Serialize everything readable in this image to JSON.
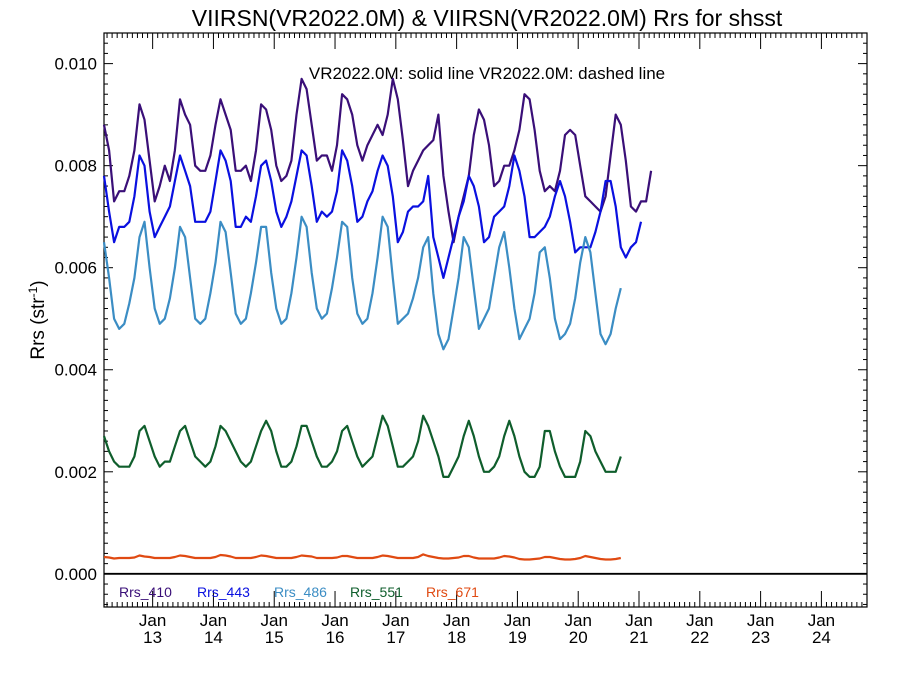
{
  "chart_data": {
    "type": "line",
    "title": "VIIRSN(VR2022.0M) & VIIRSN(VR2022.0M)  Rrs for shsst",
    "annotation": "VR2022.0M: solid line   VR2022.0M: dashed line",
    "ylabel_main": "Rrs (str",
    "ylabel_sup": "-1",
    "ylabel_close": ")",
    "ylim": [
      -0.00065,
      0.0106
    ],
    "y_ticks": [
      0.0,
      0.002,
      0.004,
      0.006,
      0.008,
      0.01
    ],
    "y_tick_labels": [
      "0.000",
      "0.002",
      "0.004",
      "0.006",
      "0.008",
      "0.010"
    ],
    "x_range": [
      2012.2,
      2024.75
    ],
    "x_year_ticks": [
      {
        "month": "Jan",
        "year": "13",
        "x": 2013.0
      },
      {
        "month": "Jan",
        "year": "14",
        "x": 2014.0
      },
      {
        "month": "Jan",
        "year": "15",
        "x": 2015.0
      },
      {
        "month": "Jan",
        "year": "16",
        "x": 2016.0
      },
      {
        "month": "Jan",
        "year": "17",
        "x": 2017.0
      },
      {
        "month": "Jan",
        "year": "18",
        "x": 2018.0
      },
      {
        "month": "Jan",
        "year": "19",
        "x": 2019.0
      },
      {
        "month": "Jan",
        "year": "20",
        "x": 2020.0
      },
      {
        "month": "Jan",
        "year": "21",
        "x": 2021.0
      },
      {
        "month": "Jan",
        "year": "22",
        "x": 2022.0
      },
      {
        "month": "Jan",
        "year": "23",
        "x": 2023.0
      },
      {
        "month": "Jan",
        "year": "24",
        "x": 2024.0
      }
    ],
    "x_start": 2012.2,
    "x_step": 0.08333,
    "series": [
      {
        "name": "Rrs_410",
        "color": "#3a0f78",
        "values": [
          0.0088,
          0.0083,
          0.0073,
          0.0075,
          0.0075,
          0.0078,
          0.0083,
          0.0092,
          0.0089,
          0.0081,
          0.0073,
          0.0076,
          0.008,
          0.0077,
          0.0083,
          0.0093,
          0.009,
          0.0088,
          0.008,
          0.0079,
          0.0079,
          0.0082,
          0.0088,
          0.0093,
          0.009,
          0.0087,
          0.0079,
          0.0079,
          0.008,
          0.0077,
          0.0083,
          0.0092,
          0.0091,
          0.0087,
          0.008,
          0.0077,
          0.0078,
          0.0081,
          0.009,
          0.0097,
          0.0095,
          0.0088,
          0.0081,
          0.0082,
          0.0082,
          0.0079,
          0.0084,
          0.0094,
          0.0093,
          0.009,
          0.0084,
          0.0081,
          0.0084,
          0.0086,
          0.0088,
          0.0086,
          0.009,
          0.0097,
          0.0093,
          0.0085,
          0.0076,
          0.0079,
          0.0081,
          0.0083,
          0.0084,
          0.0085,
          0.009,
          0.0078,
          0.0071,
          0.0065,
          0.007,
          0.0074,
          0.0078,
          0.0086,
          0.0091,
          0.0089,
          0.0084,
          0.0076,
          0.0077,
          0.008,
          0.008,
          0.0083,
          0.0087,
          0.0094,
          0.0093,
          0.0087,
          0.0079,
          0.0075,
          0.0076,
          0.0075,
          0.0079,
          0.0086,
          0.0087,
          0.0086,
          0.008,
          0.0074,
          0.0073,
          0.0072,
          0.0071,
          0.0074,
          0.0082,
          0.009,
          0.0088,
          0.0081,
          0.0072,
          0.0071,
          0.0073,
          0.0073,
          0.0079
        ]
      },
      {
        "name": "Rrs_443",
        "color": "#0a10e0",
        "values": [
          0.0078,
          0.0071,
          0.0065,
          0.0068,
          0.0068,
          0.0069,
          0.0074,
          0.0082,
          0.008,
          0.0071,
          0.0066,
          0.0068,
          0.007,
          0.0072,
          0.0077,
          0.0082,
          0.0079,
          0.0076,
          0.0069,
          0.0069,
          0.0069,
          0.0071,
          0.0077,
          0.0083,
          0.0081,
          0.0077,
          0.0068,
          0.0068,
          0.007,
          0.0069,
          0.0074,
          0.008,
          0.0081,
          0.0077,
          0.0071,
          0.0068,
          0.007,
          0.0073,
          0.0078,
          0.0083,
          0.0082,
          0.0076,
          0.0069,
          0.0071,
          0.007,
          0.0071,
          0.0075,
          0.0083,
          0.0081,
          0.0076,
          0.0069,
          0.007,
          0.0073,
          0.0075,
          0.0079,
          0.0082,
          0.008,
          0.0074,
          0.0065,
          0.0067,
          0.0071,
          0.0072,
          0.0072,
          0.0073,
          0.0078,
          0.0066,
          0.0062,
          0.0058,
          0.0062,
          0.0066,
          0.007,
          0.0073,
          0.0078,
          0.0076,
          0.0072,
          0.0065,
          0.0066,
          0.007,
          0.0071,
          0.0072,
          0.0076,
          0.0082,
          0.0079,
          0.0074,
          0.0066,
          0.0066,
          0.0067,
          0.0068,
          0.007,
          0.0074,
          0.0077,
          0.0074,
          0.0069,
          0.0063,
          0.0064,
          0.0064,
          0.0064,
          0.0067,
          0.0071,
          0.0077,
          0.0077,
          0.0072,
          0.0064,
          0.0062,
          0.0064,
          0.0065,
          0.0069
        ]
      },
      {
        "name": "Rrs_486",
        "color": "#3b8dc4",
        "values": [
          0.0065,
          0.0058,
          0.005,
          0.0048,
          0.0049,
          0.0053,
          0.0058,
          0.0066,
          0.0069,
          0.006,
          0.0052,
          0.0049,
          0.005,
          0.0054,
          0.006,
          0.0068,
          0.0066,
          0.0058,
          0.005,
          0.0049,
          0.005,
          0.0055,
          0.0061,
          0.0069,
          0.0067,
          0.0059,
          0.0051,
          0.0049,
          0.005,
          0.0055,
          0.0061,
          0.0068,
          0.0068,
          0.0059,
          0.0052,
          0.0049,
          0.005,
          0.0055,
          0.0062,
          0.007,
          0.0068,
          0.0059,
          0.0052,
          0.005,
          0.0051,
          0.0056,
          0.0062,
          0.0069,
          0.0068,
          0.0058,
          0.0051,
          0.0049,
          0.005,
          0.0055,
          0.0062,
          0.007,
          0.0068,
          0.0058,
          0.0049,
          0.005,
          0.0051,
          0.0054,
          0.0058,
          0.0064,
          0.0066,
          0.0055,
          0.0047,
          0.0044,
          0.0046,
          0.0052,
          0.0058,
          0.0066,
          0.0064,
          0.0056,
          0.0048,
          0.005,
          0.0052,
          0.0058,
          0.0064,
          0.0067,
          0.006,
          0.0052,
          0.0046,
          0.0048,
          0.005,
          0.0055,
          0.0063,
          0.0064,
          0.0058,
          0.005,
          0.0046,
          0.0047,
          0.0049,
          0.0054,
          0.0061,
          0.0066,
          0.0063,
          0.0055,
          0.0047,
          0.0045,
          0.0047,
          0.0052,
          0.0056
        ]
      },
      {
        "name": "Rrs_551",
        "color": "#0f5e2c",
        "values": [
          0.0027,
          0.0024,
          0.0022,
          0.0021,
          0.0021,
          0.0021,
          0.0023,
          0.0028,
          0.0029,
          0.0026,
          0.0023,
          0.0021,
          0.0022,
          0.0022,
          0.0025,
          0.0028,
          0.0029,
          0.0026,
          0.0023,
          0.0022,
          0.0021,
          0.0022,
          0.0025,
          0.0029,
          0.0028,
          0.0026,
          0.0024,
          0.0022,
          0.0021,
          0.0022,
          0.0025,
          0.0028,
          0.003,
          0.0028,
          0.0024,
          0.0021,
          0.0021,
          0.0022,
          0.0025,
          0.0029,
          0.0029,
          0.0026,
          0.0023,
          0.0021,
          0.0021,
          0.0022,
          0.0024,
          0.0028,
          0.0029,
          0.0026,
          0.0023,
          0.0021,
          0.0022,
          0.0023,
          0.0027,
          0.0031,
          0.0029,
          0.0025,
          0.0021,
          0.0021,
          0.0022,
          0.0023,
          0.0026,
          0.0031,
          0.0029,
          0.0026,
          0.0023,
          0.0019,
          0.0019,
          0.0021,
          0.0023,
          0.0027,
          0.003,
          0.0027,
          0.0023,
          0.002,
          0.002,
          0.0021,
          0.0023,
          0.0027,
          0.003,
          0.0027,
          0.0023,
          0.002,
          0.0019,
          0.0019,
          0.0021,
          0.0028,
          0.0028,
          0.0024,
          0.0021,
          0.0019,
          0.0019,
          0.0019,
          0.0022,
          0.0028,
          0.0027,
          0.0024,
          0.0022,
          0.002,
          0.002,
          0.002,
          0.0023
        ]
      },
      {
        "name": "Rrs_671",
        "color": "#e04a12",
        "values": [
          0.00033,
          0.00032,
          0.0003,
          0.00031,
          0.00031,
          0.00031,
          0.00032,
          0.00036,
          0.00034,
          0.00033,
          0.00031,
          0.00031,
          0.00031,
          0.00031,
          0.00033,
          0.00036,
          0.00035,
          0.00033,
          0.00031,
          0.00031,
          0.00031,
          0.00031,
          0.00033,
          0.00037,
          0.00036,
          0.00034,
          0.00031,
          0.00031,
          0.00031,
          0.00031,
          0.00033,
          0.00036,
          0.00035,
          0.00033,
          0.00031,
          0.00031,
          0.00031,
          0.00031,
          0.00033,
          0.00036,
          0.00035,
          0.00034,
          0.00031,
          0.00031,
          0.00031,
          0.00031,
          0.00032,
          0.00035,
          0.00035,
          0.00033,
          0.00031,
          0.00031,
          0.00031,
          0.00031,
          0.00033,
          0.00036,
          0.00035,
          0.00033,
          0.00031,
          0.00031,
          0.00031,
          0.00031,
          0.00033,
          0.00038,
          0.00035,
          0.00033,
          0.00031,
          0.0003,
          0.0003,
          0.00031,
          0.00032,
          0.00035,
          0.00035,
          0.00032,
          0.0003,
          0.0003,
          0.0003,
          0.0003,
          0.00032,
          0.00035,
          0.00034,
          0.00032,
          0.00029,
          0.00028,
          0.00028,
          0.00029,
          0.0003,
          0.00033,
          0.00033,
          0.00031,
          0.00029,
          0.00028,
          0.00028,
          0.00029,
          0.00031,
          0.00035,
          0.00033,
          0.00031,
          0.00029,
          0.00028,
          0.00028,
          0.00029,
          0.00031
        ]
      }
    ],
    "legend": [
      "Rrs_410",
      "Rrs_443",
      "Rrs_486",
      "Rrs_551",
      "Rrs_671"
    ],
    "zero_line": true,
    "grid": false
  }
}
